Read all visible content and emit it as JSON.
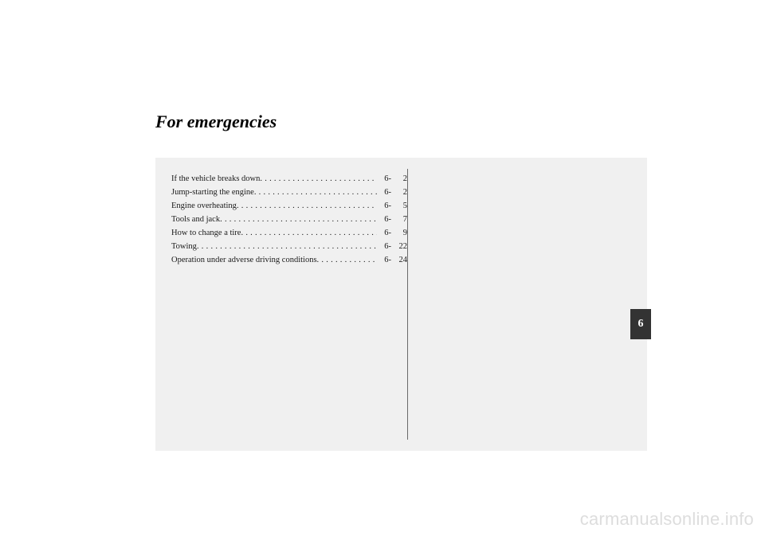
{
  "title": "For emergencies",
  "section_prefix": "6-",
  "toc": [
    {
      "label": "If the vehicle breaks down",
      "page": "2"
    },
    {
      "label": "Jump-starting the engine",
      "page": "2"
    },
    {
      "label": "Engine overheating",
      "page": "5"
    },
    {
      "label": "Tools and jack",
      "page": "7"
    },
    {
      "label": "How to change a tire",
      "page": "9"
    },
    {
      "label": "Towing",
      "page": "22"
    },
    {
      "label": "Operation under adverse driving conditions",
      "page": "24"
    }
  ],
  "tab_number": "6",
  "watermark": "carmanualsonline.info",
  "colors": {
    "page_bg": "#ffffff",
    "box_bg": "#f0f0f0",
    "text": "#1a1a1a",
    "divider": "#6a6a6a",
    "tab_bg": "#333333",
    "tab_text": "#ffffff",
    "watermark": "#dddddd"
  }
}
